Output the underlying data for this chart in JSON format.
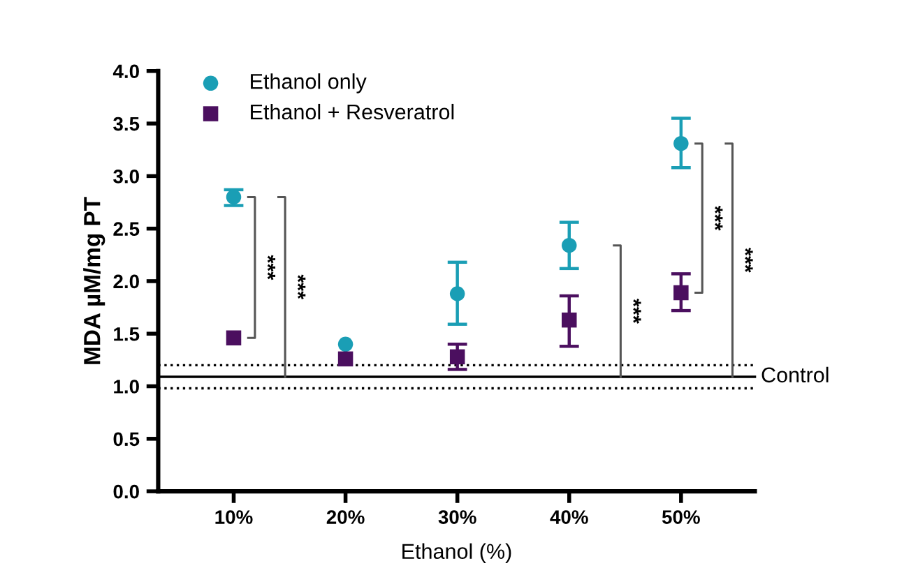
{
  "chart_data": {
    "type": "scatter",
    "xlabel": "Ethanol (%)",
    "ylabel": "MDA µM/mg PT",
    "categories": [
      "10%",
      "20%",
      "30%",
      "40%",
      "50%"
    ],
    "series": [
      {
        "name": "Ethanol only",
        "color": "#1a9eb5",
        "marker": "circle",
        "values": [
          2.8,
          1.4,
          1.88,
          2.34,
          3.31
        ],
        "errors": [
          [
            2.72,
            2.87
          ],
          null,
          [
            1.59,
            2.18
          ],
          [
            2.12,
            2.56
          ],
          [
            3.08,
            3.55
          ]
        ]
      },
      {
        "name": "Ethanol + Resveratrol",
        "color": "#4b0f5f",
        "marker": "square",
        "values": [
          1.46,
          1.26,
          1.28,
          1.63,
          1.89
        ],
        "errors": [
          null,
          null,
          [
            1.16,
            1.4
          ],
          [
            1.38,
            1.86
          ],
          [
            1.72,
            2.07
          ]
        ]
      }
    ],
    "ylim": [
      0,
      4
    ],
    "yticks": [
      {
        "value": 0,
        "label": "0.0"
      },
      {
        "value": 0.5,
        "label": "0.5"
      },
      {
        "value": 1,
        "label": "1.0"
      },
      {
        "value": 1.5,
        "label": "1.5"
      },
      {
        "value": 2,
        "label": "2.0"
      },
      {
        "value": 2.5,
        "label": "2.5"
      },
      {
        "value": 3,
        "label": "3.0"
      },
      {
        "value": 3.5,
        "label": "3.5"
      },
      {
        "value": 4,
        "label": "4.0"
      }
    ],
    "ref_lines": [
      {
        "axis": "y",
        "value": 1.09,
        "label": "Control",
        "line_style": "solid",
        "color": "#000000"
      },
      {
        "axis": "y",
        "value": 1.2,
        "line_style": "dotted",
        "color": "#000000"
      },
      {
        "axis": "y",
        "value": 0.98,
        "line_style": "dotted",
        "color": "#000000"
      }
    ],
    "annotations": [
      "***",
      "***",
      "***",
      "***",
      "***"
    ],
    "legend": "top left",
    "grid": false
  }
}
